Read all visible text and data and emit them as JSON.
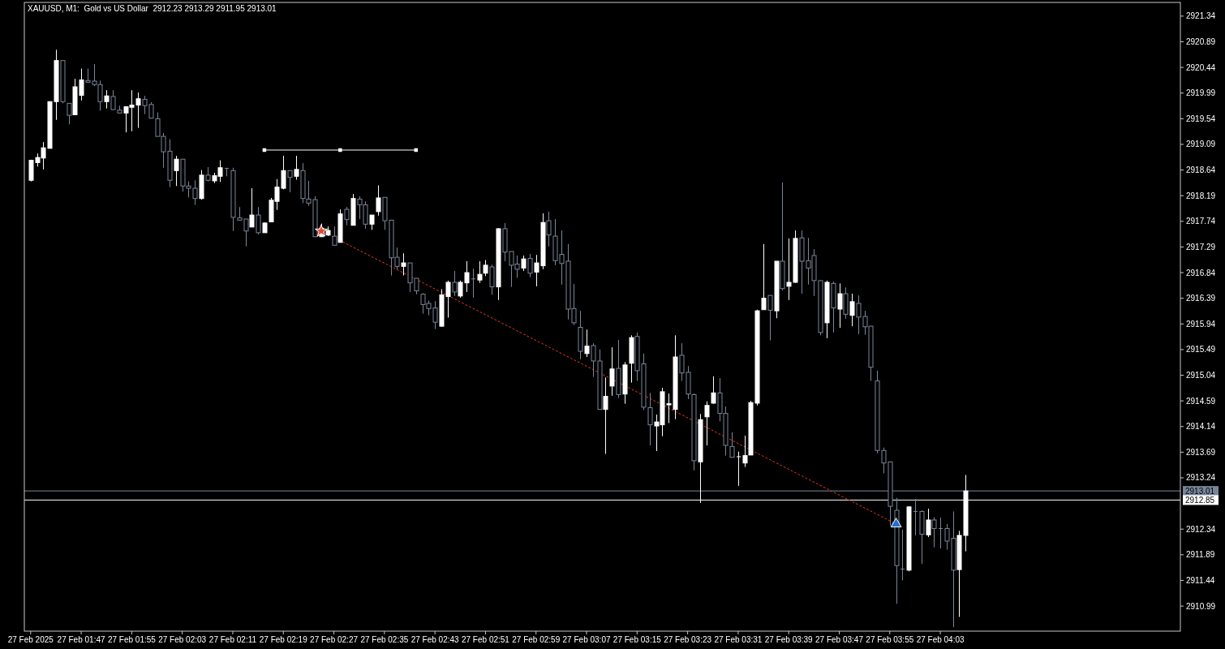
{
  "chart_data": {
    "type": "candlestick",
    "title": "XAUUSD, M1:  Gold vs US Dollar  2912.23 2913.29 2911.95 2913.01",
    "x": [
      "2025-02-27T01:39",
      "2025-02-27T01:40",
      "2025-02-27T01:41",
      "2025-02-27T01:42",
      "2025-02-27T01:43",
      "2025-02-27T01:44",
      "2025-02-27T01:45",
      "2025-02-27T01:46",
      "2025-02-27T01:47",
      "2025-02-27T01:48",
      "2025-02-27T01:49",
      "2025-02-27T01:50",
      "2025-02-27T01:51",
      "2025-02-27T01:52",
      "2025-02-27T01:53",
      "2025-02-27T01:54",
      "2025-02-27T01:55",
      "2025-02-27T01:56",
      "2025-02-27T01:57",
      "2025-02-27T01:58",
      "2025-02-27T01:59",
      "2025-02-27T02:00",
      "2025-02-27T02:01",
      "2025-02-27T02:02",
      "2025-02-27T02:03",
      "2025-02-27T02:04",
      "2025-02-27T02:05",
      "2025-02-27T02:06",
      "2025-02-27T02:07",
      "2025-02-27T02:08",
      "2025-02-27T02:09",
      "2025-02-27T02:10",
      "2025-02-27T02:11",
      "2025-02-27T02:12",
      "2025-02-27T02:13",
      "2025-02-27T02:14",
      "2025-02-27T02:15",
      "2025-02-27T02:16",
      "2025-02-27T02:17",
      "2025-02-27T02:18",
      "2025-02-27T02:19",
      "2025-02-27T02:20",
      "2025-02-27T02:21",
      "2025-02-27T02:22",
      "2025-02-27T02:23",
      "2025-02-27T02:24",
      "2025-02-27T02:25",
      "2025-02-27T02:26",
      "2025-02-27T02:27",
      "2025-02-27T02:28",
      "2025-02-27T02:29",
      "2025-02-27T02:30",
      "2025-02-27T02:31",
      "2025-02-27T02:32",
      "2025-02-27T02:33",
      "2025-02-27T02:34",
      "2025-02-27T02:35",
      "2025-02-27T02:36",
      "2025-02-27T02:37",
      "2025-02-27T02:38",
      "2025-02-27T02:39",
      "2025-02-27T02:40",
      "2025-02-27T02:41",
      "2025-02-27T02:42",
      "2025-02-27T02:43",
      "2025-02-27T02:44",
      "2025-02-27T02:45",
      "2025-02-27T02:46",
      "2025-02-27T02:47",
      "2025-02-27T02:48",
      "2025-02-27T02:49",
      "2025-02-27T02:50",
      "2025-02-27T02:51",
      "2025-02-27T02:52",
      "2025-02-27T02:53",
      "2025-02-27T02:54",
      "2025-02-27T02:55",
      "2025-02-27T02:56",
      "2025-02-27T02:57",
      "2025-02-27T02:58",
      "2025-02-27T02:59",
      "2025-02-27T03:00",
      "2025-02-27T03:01",
      "2025-02-27T03:02",
      "2025-02-27T03:03",
      "2025-02-27T03:04",
      "2025-02-27T03:05",
      "2025-02-27T03:06",
      "2025-02-27T03:07",
      "2025-02-27T03:08",
      "2025-02-27T03:09",
      "2025-02-27T03:10",
      "2025-02-27T03:11",
      "2025-02-27T03:12",
      "2025-02-27T03:13",
      "2025-02-27T03:14",
      "2025-02-27T03:15",
      "2025-02-27T03:16",
      "2025-02-27T03:17",
      "2025-02-27T03:18",
      "2025-02-27T03:19",
      "2025-02-27T03:20",
      "2025-02-27T03:21",
      "2025-02-27T03:22",
      "2025-02-27T03:23",
      "2025-02-27T03:24",
      "2025-02-27T03:25",
      "2025-02-27T03:26",
      "2025-02-27T03:27",
      "2025-02-27T03:28",
      "2025-02-27T03:29",
      "2025-02-27T03:30",
      "2025-02-27T03:31",
      "2025-02-27T03:32",
      "2025-02-27T03:33",
      "2025-02-27T03:34",
      "2025-02-27T03:35",
      "2025-02-27T03:36",
      "2025-02-27T03:37",
      "2025-02-27T03:38",
      "2025-02-27T03:39",
      "2025-02-27T03:40",
      "2025-02-27T03:41",
      "2025-02-27T03:42",
      "2025-02-27T03:43",
      "2025-02-27T03:44",
      "2025-02-27T03:45",
      "2025-02-27T03:46",
      "2025-02-27T03:47",
      "2025-02-27T03:48",
      "2025-02-27T03:49",
      "2025-02-27T03:50",
      "2025-02-27T03:51",
      "2025-02-27T03:52",
      "2025-02-27T03:53",
      "2025-02-27T03:54",
      "2025-02-27T03:55",
      "2025-02-27T03:56",
      "2025-02-27T03:57",
      "2025-02-27T03:58",
      "2025-02-27T03:59",
      "2025-02-27T04:00",
      "2025-02-27T04:01",
      "2025-02-27T04:02",
      "2025-02-27T04:03",
      "2025-02-27T04:04",
      "2025-02-27T04:05",
      "2025-02-27T04:06",
      "2025-02-27T04:07"
    ],
    "ohlc": [
      [
        2918.46,
        2918.82,
        2918.44,
        2918.81
      ],
      [
        2918.77,
        2918.93,
        2918.7,
        2918.86
      ],
      [
        2918.85,
        2919.13,
        2918.65,
        2919.03
      ],
      [
        2919.02,
        2919.84,
        2919.02,
        2919.84
      ],
      [
        2919.84,
        2920.75,
        2919.52,
        2920.56
      ],
      [
        2920.56,
        2920.56,
        2919.81,
        2919.84
      ],
      [
        2919.81,
        2919.81,
        2919.44,
        2919.6
      ],
      [
        2919.61,
        2920.24,
        2919.61,
        2920.1
      ],
      [
        2919.95,
        2920.42,
        2919.86,
        2920.22
      ],
      [
        2920.21,
        2920.42,
        2920.18,
        2920.18
      ],
      [
        2920.2,
        2920.5,
        2920.11,
        2920.14
      ],
      [
        2920.14,
        2920.21,
        2919.68,
        2919.84
      ],
      [
        2919.84,
        2920.04,
        2919.72,
        2919.94
      ],
      [
        2919.93,
        2920.04,
        2919.7,
        2919.7
      ],
      [
        2919.69,
        2919.77,
        2919.64,
        2919.64
      ],
      [
        2919.64,
        2919.75,
        2919.3,
        2919.75
      ],
      [
        2919.74,
        2920.04,
        2919.32,
        2919.78
      ],
      [
        2919.78,
        2920.0,
        2919.38,
        2919.89
      ],
      [
        2919.88,
        2919.94,
        2919.62,
        2919.77
      ],
      [
        2919.79,
        2919.83,
        2919.55,
        2919.55
      ],
      [
        2919.54,
        2919.65,
        2919.23,
        2919.23
      ],
      [
        2919.23,
        2919.29,
        2918.68,
        2918.96
      ],
      [
        2918.97,
        2919.18,
        2918.34,
        2918.46
      ],
      [
        2918.63,
        2918.89,
        2918.36,
        2918.83
      ],
      [
        2918.83,
        2918.83,
        2918.26,
        2918.36
      ],
      [
        2918.36,
        2918.44,
        2918.16,
        2918.32
      ],
      [
        2918.32,
        2918.46,
        2918.03,
        2918.14
      ],
      [
        2918.14,
        2918.64,
        2918.12,
        2918.55
      ],
      [
        2918.55,
        2918.69,
        2918.44,
        2918.46
      ],
      [
        2918.45,
        2918.59,
        2918.41,
        2918.54
      ],
      [
        2918.53,
        2918.81,
        2918.43,
        2918.68
      ],
      [
        2918.67,
        2918.67,
        2918.53,
        2918.67
      ],
      [
        2918.63,
        2918.68,
        2917.57,
        2917.81
      ],
      [
        2917.8,
        2917.99,
        2917.76,
        2917.76
      ],
      [
        2917.78,
        2917.78,
        2917.3,
        2917.57
      ],
      [
        2917.64,
        2918.32,
        2917.64,
        2917.85
      ],
      [
        2917.85,
        2917.99,
        2917.51,
        2917.54
      ],
      [
        2917.54,
        2917.72,
        2917.54,
        2917.71
      ],
      [
        2917.73,
        2918.15,
        2917.73,
        2918.11
      ],
      [
        2918.09,
        2918.48,
        2917.94,
        2918.34
      ],
      [
        2918.32,
        2918.89,
        2918.3,
        2918.63
      ],
      [
        2918.63,
        2918.63,
        2918.25,
        2918.51
      ],
      [
        2918.53,
        2918.89,
        2918.47,
        2918.65
      ],
      [
        2918.63,
        2918.76,
        2918.06,
        2918.14
      ],
      [
        2918.13,
        2918.45,
        2918.01,
        2918.06
      ],
      [
        2918.12,
        2918.18,
        2917.47,
        2917.47
      ],
      [
        2917.47,
        2917.7,
        2917.47,
        2917.62
      ],
      [
        2917.5,
        2917.65,
        2917.48,
        2917.58
      ],
      [
        2917.48,
        2917.65,
        2917.32,
        2917.32
      ],
      [
        2917.37,
        2917.95,
        2917.37,
        2917.87
      ],
      [
        2917.95,
        2917.99,
        2917.67,
        2917.77
      ],
      [
        2917.67,
        2918.22,
        2917.67,
        2918.14
      ],
      [
        2918.13,
        2918.18,
        2917.78,
        2918.03
      ],
      [
        2918.03,
        2918.09,
        2917.61,
        2917.69
      ],
      [
        2917.69,
        2917.85,
        2917.59,
        2917.85
      ],
      [
        2917.91,
        2918.37,
        2917.84,
        2918.15
      ],
      [
        2918.16,
        2918.16,
        2917.59,
        2917.75
      ],
      [
        2917.76,
        2917.76,
        2916.79,
        2917.1
      ],
      [
        2917.11,
        2917.28,
        2916.9,
        2916.95
      ],
      [
        2916.95,
        2917.18,
        2916.79,
        2917.01
      ],
      [
        2917.01,
        2917.01,
        2916.5,
        2916.66
      ],
      [
        2916.74,
        2916.74,
        2916.46,
        2916.52
      ],
      [
        2916.46,
        2916.48,
        2916.12,
        2916.28
      ],
      [
        2916.3,
        2916.35,
        2916.09,
        2916.21
      ],
      [
        2916.22,
        2916.34,
        2915.85,
        2915.97
      ],
      [
        2915.9,
        2916.55,
        2915.89,
        2916.45
      ],
      [
        2916.42,
        2916.7,
        2916.05,
        2916.67
      ],
      [
        2916.67,
        2916.87,
        2916.43,
        2916.5
      ],
      [
        2916.43,
        2916.7,
        2916.4,
        2916.67
      ],
      [
        2916.66,
        2917.04,
        2916.5,
        2916.84
      ],
      [
        2916.73,
        2916.91,
        2916.4,
        2916.73
      ],
      [
        2916.71,
        2917.04,
        2916.66,
        2916.81
      ],
      [
        2916.83,
        2917.06,
        2916.78,
        2916.97
      ],
      [
        2916.94,
        2916.98,
        2916.45,
        2916.59
      ],
      [
        2916.59,
        2917.62,
        2916.36,
        2917.61
      ],
      [
        2917.61,
        2917.71,
        2917.04,
        2917.2
      ],
      [
        2917.21,
        2917.21,
        2916.59,
        2916.97
      ],
      [
        2916.99,
        2917.14,
        2916.75,
        2916.9
      ],
      [
        2916.92,
        2917.14,
        2916.87,
        2917.08
      ],
      [
        2917.09,
        2917.17,
        2916.76,
        2916.83
      ],
      [
        2916.85,
        2917.15,
        2916.6,
        2917.01
      ],
      [
        2916.96,
        2917.88,
        2916.9,
        2917.72
      ],
      [
        2917.75,
        2917.91,
        2917.3,
        2917.5
      ],
      [
        2917.48,
        2917.78,
        2916.97,
        2917.05
      ],
      [
        2917.16,
        2917.58,
        2916.63,
        2917.0
      ],
      [
        2917.04,
        2917.34,
        2916.02,
        2916.2
      ],
      [
        2916.21,
        2916.64,
        2915.92,
        2915.96
      ],
      [
        2915.88,
        2916.17,
        2915.32,
        2915.46
      ],
      [
        2915.42,
        2915.84,
        2915.36,
        2915.55
      ],
      [
        2915.56,
        2915.6,
        2915.01,
        2915.29
      ],
      [
        2915.29,
        2915.49,
        2914.44,
        2914.44
      ],
      [
        2914.44,
        2915.0,
        2913.66,
        2914.67
      ],
      [
        2914.85,
        2915.53,
        2914.68,
        2915.15
      ],
      [
        2915.16,
        2915.66,
        2914.64,
        2914.7
      ],
      [
        2914.71,
        2915.27,
        2914.54,
        2915.22
      ],
      [
        2915.25,
        2915.74,
        2914.91,
        2915.7
      ],
      [
        2915.72,
        2915.79,
        2914.94,
        2915.12
      ],
      [
        2915.24,
        2915.42,
        2914.43,
        2914.48
      ],
      [
        2914.47,
        2914.73,
        2913.81,
        2914.17
      ],
      [
        2914.15,
        2914.35,
        2913.71,
        2914.22
      ],
      [
        2914.17,
        2914.82,
        2913.97,
        2914.75
      ],
      [
        2914.52,
        2914.72,
        2914.2,
        2914.54
      ],
      [
        2914.44,
        2915.74,
        2914.27,
        2915.36
      ],
      [
        2915.39,
        2915.6,
        2914.94,
        2915.08
      ],
      [
        2915.09,
        2915.2,
        2914.62,
        2914.71
      ],
      [
        2914.7,
        2914.72,
        2913.37,
        2913.54
      ],
      [
        2913.52,
        2914.36,
        2912.8,
        2914.26
      ],
      [
        2914.31,
        2914.58,
        2913.81,
        2914.51
      ],
      [
        2914.55,
        2915.02,
        2914.54,
        2914.73
      ],
      [
        2914.73,
        2914.99,
        2914.23,
        2914.37
      ],
      [
        2914.37,
        2914.49,
        2913.63,
        2913.81
      ],
      [
        2913.79,
        2914.04,
        2913.6,
        2913.6
      ],
      [
        2913.61,
        2913.7,
        2913.1,
        2913.61
      ],
      [
        2913.5,
        2913.98,
        2913.43,
        2913.63
      ],
      [
        2913.64,
        2914.59,
        2913.64,
        2914.56
      ],
      [
        2914.55,
        2916.19,
        2914.51,
        2916.17
      ],
      [
        2916.19,
        2917.34,
        2916.19,
        2916.39
      ],
      [
        2916.44,
        2916.44,
        2915.65,
        2916.18
      ],
      [
        2916.17,
        2917.04,
        2916.04,
        2917.04
      ],
      [
        2917.04,
        2918.42,
        2916.53,
        2916.56
      ],
      [
        2916.6,
        2917.44,
        2916.36,
        2916.67
      ],
      [
        2916.67,
        2917.58,
        2916.66,
        2917.44
      ],
      [
        2917.45,
        2917.58,
        2916.47,
        2917.04
      ],
      [
        2917.05,
        2917.45,
        2916.63,
        2916.92
      ],
      [
        2917.14,
        2917.25,
        2916.43,
        2916.7
      ],
      [
        2916.7,
        2916.7,
        2915.74,
        2915.79
      ],
      [
        2915.96,
        2916.7,
        2915.69,
        2916.67
      ],
      [
        2916.65,
        2916.68,
        2915.79,
        2916.22
      ],
      [
        2916.2,
        2916.65,
        2915.87,
        2916.47
      ],
      [
        2916.47,
        2916.58,
        2916.03,
        2916.11
      ],
      [
        2916.09,
        2916.47,
        2915.9,
        2916.33
      ],
      [
        2916.3,
        2916.44,
        2915.76,
        2916.06
      ],
      [
        2916.07,
        2916.17,
        2915.75,
        2915.89
      ],
      [
        2915.9,
        2915.9,
        2914.94,
        2915.18
      ],
      [
        2914.94,
        2915.12,
        2913.67,
        2913.72
      ],
      [
        2913.72,
        2913.77,
        2913.32,
        2913.5
      ],
      [
        2913.52,
        2913.52,
        2912.4,
        2912.74
      ],
      [
        2912.67,
        2912.89,
        2911.03,
        2911.7
      ],
      [
        2911.64,
        2912.33,
        2911.44,
        2911.64
      ],
      [
        2911.62,
        2912.74,
        2911.6,
        2912.73
      ],
      [
        2912.65,
        2912.87,
        2912.23,
        2912.65
      ],
      [
        2912.65,
        2912.67,
        2911.73,
        2912.25
      ],
      [
        2912.24,
        2912.7,
        2912.2,
        2912.5
      ],
      [
        2912.5,
        2912.55,
        2912.02,
        2912.35
      ],
      [
        2912.35,
        2912.54,
        2912.0,
        2912.35
      ],
      [
        2912.35,
        2912.43,
        2911.98,
        2912.13
      ],
      [
        2912.18,
        2912.65,
        2910.62,
        2911.62
      ],
      [
        2911.63,
        2912.31,
        2910.8,
        2912.23
      ],
      [
        2912.23,
        2913.29,
        2911.95,
        2913.01
      ]
    ],
    "colors": [
      "#ffffff",
      "#ffffff",
      "#ffffff",
      "#ffffff",
      "#ffffff",
      "#7a8699",
      "#7a8699",
      "#ffffff",
      "#ffffff",
      "#7a8699",
      "#7a8699",
      "#7a8699",
      "#ffffff",
      "#7a8699",
      "#7a8699",
      "#ffffff",
      "#ffffff",
      "#ffffff",
      "#7a8699",
      "#7a8699",
      "#7a8699",
      "#7a8699",
      "#7a8699",
      "#ffffff",
      "#7a8699",
      "#7a8699",
      "#7a8699",
      "#ffffff",
      "#7a8699",
      "#ffffff",
      "#ffffff",
      "#7a8699",
      "#7a8699",
      "#7a8699",
      "#7a8699",
      "#ffffff",
      "#7a8699",
      "#ffffff",
      "#ffffff",
      "#ffffff",
      "#ffffff",
      "#7a8699",
      "#ffffff",
      "#7a8699",
      "#7a8699",
      "#7a8699",
      "#ffffff",
      "#ffffff",
      "#7a8699",
      "#ffffff",
      "#7a8699",
      "#ffffff",
      "#7a8699",
      "#7a8699",
      "#ffffff",
      "#ffffff",
      "#7a8699",
      "#7a8699",
      "#7a8699",
      "#ffffff",
      "#7a8699",
      "#7a8699",
      "#7a8699",
      "#7a8699",
      "#7a8699",
      "#ffffff",
      "#ffffff",
      "#7a8699",
      "#ffffff",
      "#ffffff",
      "#7a8699",
      "#ffffff",
      "#ffffff",
      "#7a8699",
      "#ffffff",
      "#7a8699",
      "#7a8699",
      "#7a8699",
      "#ffffff",
      "#7a8699",
      "#ffffff",
      "#ffffff",
      "#7a8699",
      "#7a8699",
      "#7a8699",
      "#7a8699",
      "#7a8699",
      "#7a8699",
      "#ffffff",
      "#7a8699",
      "#7a8699",
      "#ffffff",
      "#ffffff",
      "#7a8699",
      "#ffffff",
      "#ffffff",
      "#7a8699",
      "#7a8699",
      "#7a8699",
      "#ffffff",
      "#ffffff",
      "#ffffff",
      "#ffffff",
      "#7a8699",
      "#7a8699",
      "#7a8699",
      "#ffffff",
      "#ffffff",
      "#ffffff",
      "#7a8699",
      "#7a8699",
      "#7a8699",
      "#ffffff",
      "#ffffff",
      "#ffffff",
      "#ffffff",
      "#ffffff",
      "#7a8699",
      "#ffffff",
      "#7a8699",
      "#ffffff",
      "#ffffff",
      "#7a8699",
      "#7a8699",
      "#7a8699",
      "#7a8699",
      "#ffffff",
      "#7a8699",
      "#ffffff",
      "#7a8699",
      "#ffffff",
      "#7a8699",
      "#7a8699",
      "#7a8699",
      "#7a8699",
      "#7a8699",
      "#7a8699",
      "#7a8699",
      "#7a8699",
      "#ffffff",
      "#7a8699",
      "#7a8699",
      "#ffffff",
      "#7a8699",
      "#7a8699",
      "#7a8699",
      "#7a8699",
      "#ffffff",
      "#ffffff"
    ],
    "series": [
      {
        "type": "line",
        "x": [
          "2025-02-27T02:16",
          "2025-02-27T02:28",
          "2025-02-27T02:40"
        ],
        "values": [
          2918.99,
          2918.99,
          2918.99
        ],
        "color": "#ffffff",
        "marker": "square",
        "line_style": "solid"
      },
      {
        "type": "line",
        "x": [
          "2025-02-27T02:25",
          "2025-02-27T03:56"
        ],
        "values": [
          2917.57,
          2912.43
        ],
        "color": "#e8381c",
        "marker": "none",
        "line_style": "dotted"
      },
      {
        "type": "scatter",
        "x": [
          "2025-02-27T02:25"
        ],
        "values": [
          2917.57
        ],
        "color": "#e8452c",
        "marker": "star"
      },
      {
        "type": "scatter",
        "x": [
          "2025-02-27T03:56"
        ],
        "values": [
          2912.43
        ],
        "color": "#1f6fd1",
        "marker": "triangle"
      }
    ],
    "ref_lines": [
      {
        "axis": "y",
        "value": 2913.01,
        "label": "2913.01",
        "color": "#77869a"
      },
      {
        "axis": "y",
        "value": 2912.85,
        "label": "2912.85",
        "color": "#ffffff"
      }
    ],
    "xlim": [
      "2025-02-27T01:38",
      "2025-02-27T04:41"
    ],
    "xticks": [
      {
        "value": "2025-02-27T01:39",
        "label": "27 Feb 2025"
      },
      {
        "value": "2025-02-27T01:47",
        "label": "27 Feb 01:47"
      },
      {
        "value": "2025-02-27T01:55",
        "label": "27 Feb 01:55"
      },
      {
        "value": "2025-02-27T02:03",
        "label": "27 Feb 02:03"
      },
      {
        "value": "2025-02-27T02:11",
        "label": "27 Feb 02:11"
      },
      {
        "value": "2025-02-27T02:19",
        "label": "27 Feb 02:19"
      },
      {
        "value": "2025-02-27T02:27",
        "label": "27 Feb 02:27"
      },
      {
        "value": "2025-02-27T02:35",
        "label": "27 Feb 02:35"
      },
      {
        "value": "2025-02-27T02:43",
        "label": "27 Feb 02:43"
      },
      {
        "value": "2025-02-27T02:51",
        "label": "27 Feb 02:51"
      },
      {
        "value": "2025-02-27T02:59",
        "label": "27 Feb 02:59"
      },
      {
        "value": "2025-02-27T03:07",
        "label": "27 Feb 03:07"
      },
      {
        "value": "2025-02-27T03:15",
        "label": "27 Feb 03:15"
      },
      {
        "value": "2025-02-27T03:23",
        "label": "27 Feb 03:23"
      },
      {
        "value": "2025-02-27T03:31",
        "label": "27 Feb 03:31"
      },
      {
        "value": "2025-02-27T03:39",
        "label": "27 Feb 03:39"
      },
      {
        "value": "2025-02-27T03:47",
        "label": "27 Feb 03:47"
      },
      {
        "value": "2025-02-27T03:55",
        "label": "27 Feb 03:55"
      },
      {
        "value": "2025-02-27T04:03",
        "label": "27 Feb 04:03"
      }
    ],
    "ylim": [
      2910.55,
      2921.58
    ],
    "yticks": [
      2921.34,
      2920.89,
      2920.44,
      2919.99,
      2919.54,
      2919.09,
      2918.64,
      2918.19,
      2917.74,
      2917.29,
      2916.84,
      2916.39,
      2915.94,
      2915.49,
      2915.04,
      2914.59,
      2914.14,
      2913.69,
      2913.24,
      2912.34,
      2911.89,
      2911.44,
      2910.99
    ]
  }
}
